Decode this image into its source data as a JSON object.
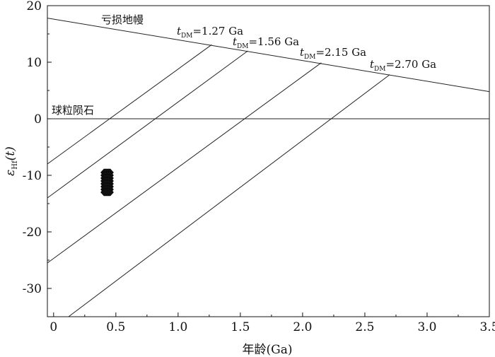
{
  "chart_data": {
    "type": "line",
    "title": "",
    "xlabel": "年龄(Ga)",
    "ylabel_main": "ε",
    "ylabel_sub": "Hf",
    "ylabel_tail": "(t)",
    "xlim": [
      -0.05,
      3.5
    ],
    "ylim": [
      -35,
      20
    ],
    "x_ticks": [
      0,
      0.5,
      1.0,
      1.5,
      2.0,
      2.5,
      3.0,
      3.5
    ],
    "x_tick_labels": [
      "0",
      "0.5",
      "1.0",
      "1.5",
      "2.0",
      "2.5",
      "3.0",
      "3.5"
    ],
    "y_ticks": [
      20,
      10,
      0,
      -10,
      -20,
      -30
    ],
    "y_tick_labels": [
      "20",
      "10",
      "0",
      "-10",
      "-20",
      "-30"
    ],
    "grid": false,
    "reference_lines": [
      {
        "label": "亏损地幔",
        "x": [
          -0.05,
          3.5
        ],
        "y": [
          17.8,
          4.8
        ]
      },
      {
        "label": "球粒陨石",
        "x": [
          -0.05,
          3.5
        ],
        "y": [
          0,
          0
        ]
      }
    ],
    "model_lines": [
      {
        "label_t": "t",
        "label_sub": "DM",
        "label_value": "=1.27 Ga",
        "x": [
          -0.05,
          1.27
        ],
        "y": [
          -8.0,
          13.1
        ]
      },
      {
        "label_t": "t",
        "label_sub": "DM",
        "label_value": "=1.56 Ga",
        "x": [
          -0.05,
          1.56
        ],
        "y": [
          -14.0,
          12.0
        ]
      },
      {
        "label_t": "t",
        "label_sub": "DM",
        "label_value": "=2.15 Ga",
        "x": [
          -0.05,
          2.15
        ],
        "y": [
          -25.5,
          9.9
        ]
      },
      {
        "label_t": "t",
        "label_sub": "DM",
        "label_value": "=2.70 Ga",
        "x": [
          0.12,
          2.7
        ],
        "y": [
          -35.0,
          7.8
        ]
      }
    ],
    "points": [
      {
        "x": 0.43,
        "y": -9.5
      },
      {
        "x": 0.43,
        "y": -10.0
      },
      {
        "x": 0.43,
        "y": -10.5
      },
      {
        "x": 0.43,
        "y": -11.0
      },
      {
        "x": 0.43,
        "y": -11.5
      },
      {
        "x": 0.43,
        "y": -12.0
      },
      {
        "x": 0.43,
        "y": -12.5
      },
      {
        "x": 0.43,
        "y": -13.0
      }
    ],
    "point_color": "#111111",
    "line_color": "#222222"
  }
}
